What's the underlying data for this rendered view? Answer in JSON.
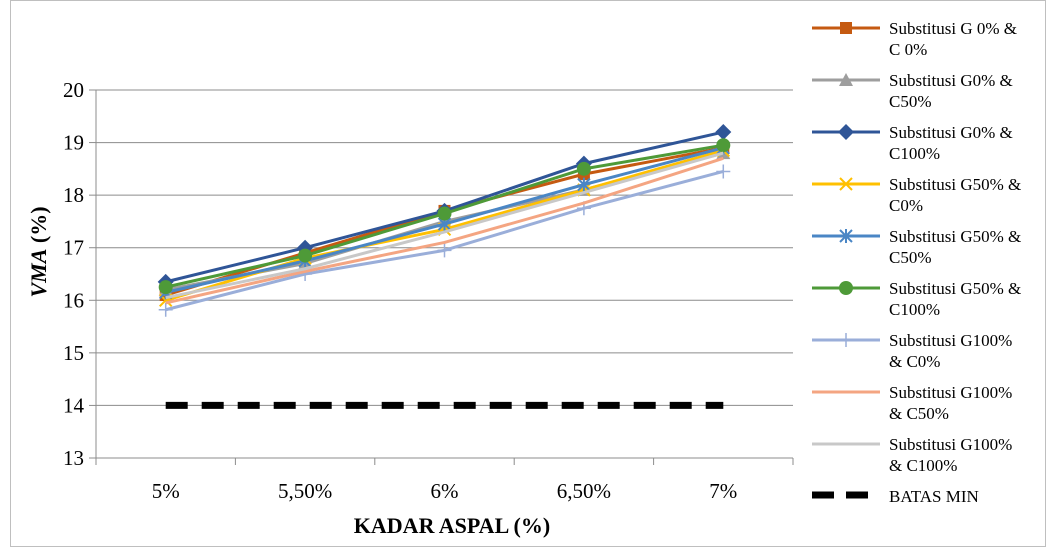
{
  "chart_data": {
    "type": "line",
    "title": "",
    "xlabel": "KADAR ASPAL (%)",
    "ylabel_italic": "VMA",
    "ylabel_suffix": " (%)",
    "categories": [
      "5%",
      "5,50%",
      "6%",
      "6,50%",
      "7%"
    ],
    "ylim": [
      13,
      20
    ],
    "yticks": [
      13,
      14,
      15,
      16,
      17,
      18,
      19,
      20
    ],
    "grid": "horizontal",
    "legend_position": "right",
    "series": [
      {
        "name_lines": [
          "Substitusi G 0% &",
          "C 0%"
        ],
        "color": "#C55A11",
        "marker": "square",
        "values": [
          16.1,
          16.9,
          17.7,
          18.4,
          18.9
        ]
      },
      {
        "name_lines": [
          "Substitusi G0% &",
          "C50%"
        ],
        "color": "#9E9E9E",
        "marker": "triangle",
        "values": [
          16.2,
          16.7,
          17.5,
          18.1,
          18.8
        ]
      },
      {
        "name_lines": [
          "Substitusi G0% &",
          "C100%"
        ],
        "color": "#2F5597",
        "marker": "diamond",
        "values": [
          16.35,
          17.0,
          17.7,
          18.6,
          19.2
        ]
      },
      {
        "name_lines": [
          "Substitusi G50% &",
          "C0%"
        ],
        "color": "#FFC000",
        "marker": "x",
        "values": [
          16.0,
          16.8,
          17.35,
          18.1,
          18.85
        ]
      },
      {
        "name_lines": [
          "Substitusi G50% &",
          "C50%"
        ],
        "color": "#4A86C5",
        "marker": "asterisk",
        "values": [
          16.15,
          16.75,
          17.45,
          18.2,
          18.9
        ]
      },
      {
        "name_lines": [
          "Substitusi G50% &",
          "C100%"
        ],
        "color": "#4E9A38",
        "marker": "circle",
        "values": [
          16.25,
          16.85,
          17.65,
          18.5,
          18.95
        ]
      },
      {
        "name_lines": [
          "Substitusi G100%",
          "& C0%"
        ],
        "color": "#9AAED9",
        "marker": "plus",
        "values": [
          15.82,
          16.5,
          16.95,
          17.75,
          18.45
        ]
      },
      {
        "name_lines": [
          "Substitusi G100%",
          "& C50%"
        ],
        "color": "#F4A582",
        "marker": "none",
        "values": [
          15.95,
          16.55,
          17.1,
          17.85,
          18.7
        ]
      },
      {
        "name_lines": [
          "Substitusi G100%",
          "& C100%"
        ],
        "color": "#C8C8C8",
        "marker": "none",
        "values": [
          16.05,
          16.6,
          17.3,
          18.05,
          18.8
        ]
      },
      {
        "name_lines": [
          "BATAS MIN"
        ],
        "color": "#000000",
        "marker": "none",
        "dashed": true,
        "values": [
          14,
          14,
          14,
          14,
          14
        ]
      }
    ]
  }
}
